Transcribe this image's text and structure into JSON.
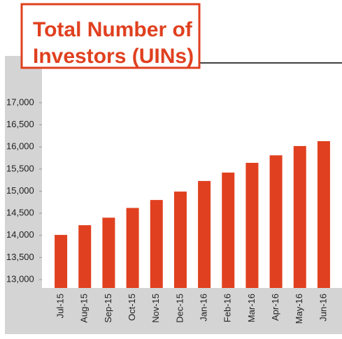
{
  "chart_data": {
    "type": "bar",
    "title": "Total Number of Investors (UINs)",
    "categories": [
      "Jul-15",
      "Aug-15",
      "Sep-15",
      "Oct-15",
      "Nov-15",
      "Dec-15",
      "Jan-16",
      "Feb-16",
      "Mar-16",
      "Apr-16",
      "May-16",
      "Jun-16"
    ],
    "values": [
      14010,
      14230,
      14400,
      14620,
      14800,
      14990,
      15230,
      15420,
      15640,
      15810,
      16020,
      16130
    ],
    "color": "#e0401f",
    "ylim": [
      12810,
      17900
    ],
    "yticks": [
      {
        "value": 13000,
        "label": "13,000"
      },
      {
        "value": 13500,
        "label": "13,500"
      },
      {
        "value": 14000,
        "label": "14,000"
      },
      {
        "value": 14500,
        "label": "14,500"
      },
      {
        "value": 15000,
        "label": "15,000"
      },
      {
        "value": 15500,
        "label": "15,500"
      },
      {
        "value": 16000,
        "label": "16,000"
      },
      {
        "value": 16500,
        "label": "16,500"
      },
      {
        "value": 17000,
        "label": "17,000"
      }
    ],
    "grid": false
  }
}
